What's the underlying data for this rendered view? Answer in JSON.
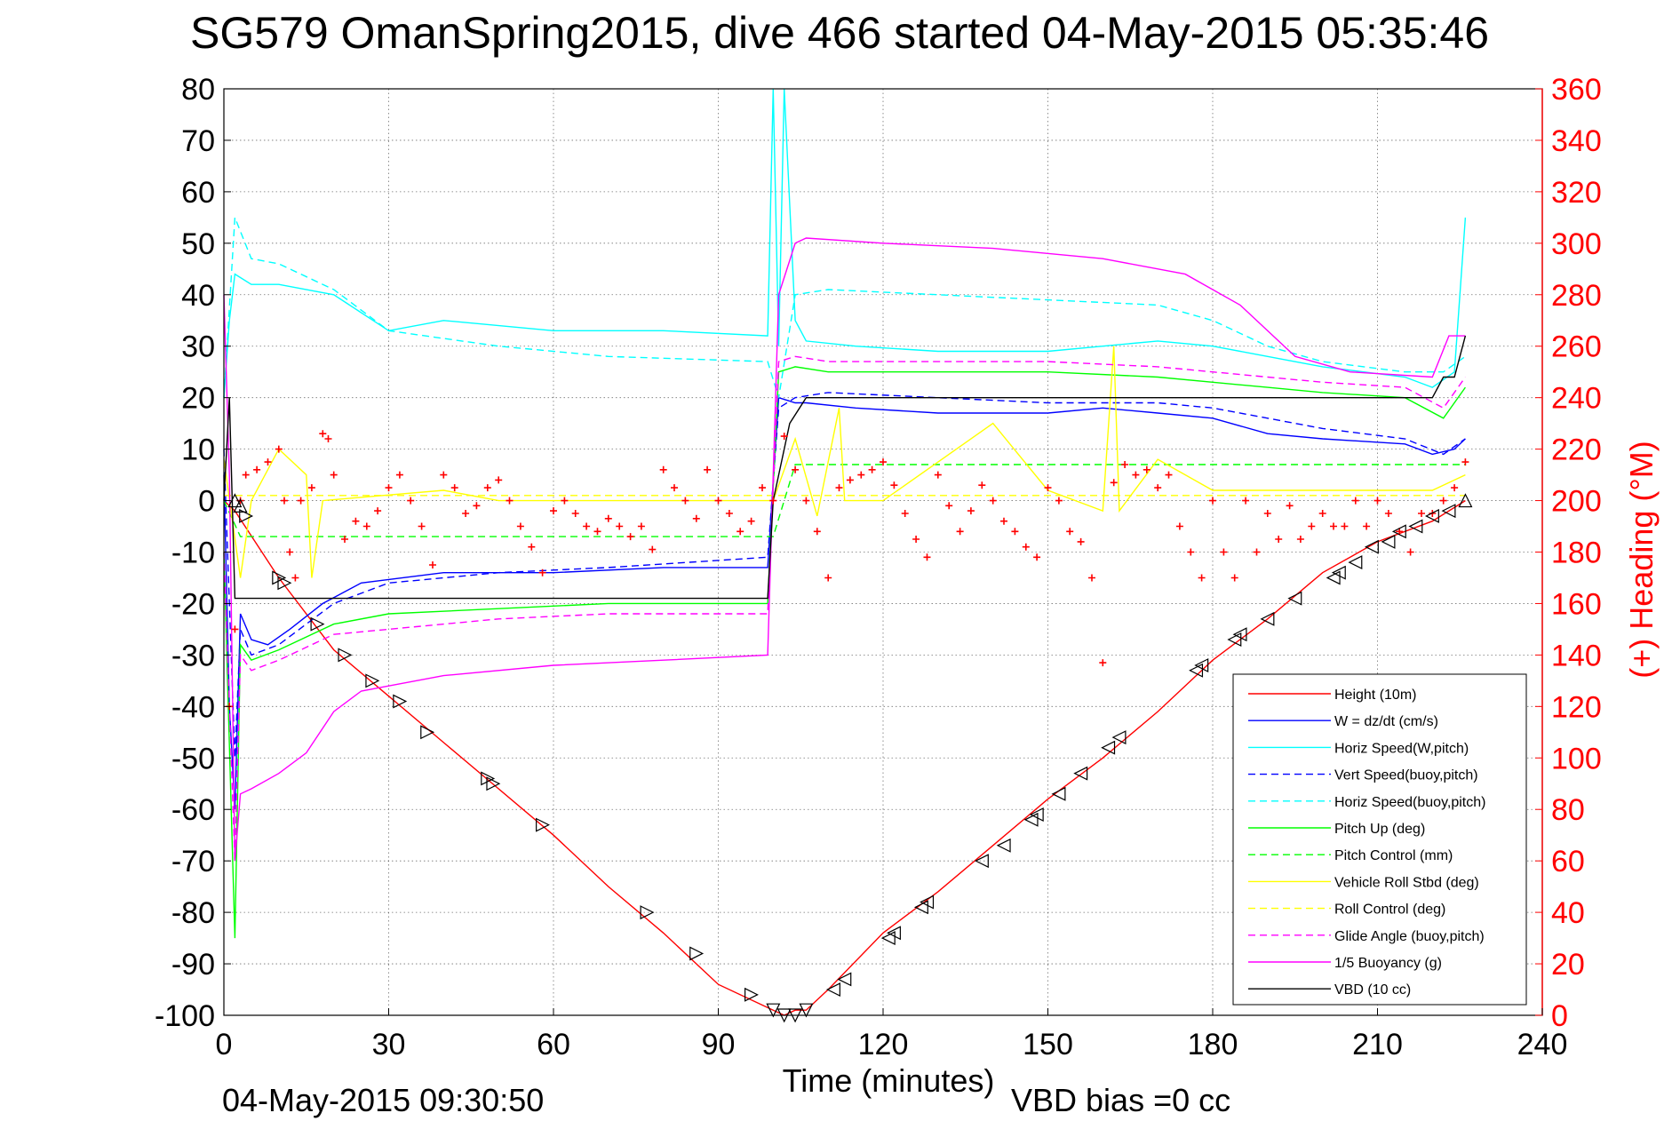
{
  "chart_data": {
    "type": "line",
    "title": "SG579 OmanSpring2015, dive 466 started 04-May-2015 05:35:46",
    "xlabel": "Time (minutes)",
    "ylabel": "",
    "y2label": "(+) Heading (°M)",
    "xlim": [
      0,
      240
    ],
    "ylim": [
      -100,
      80
    ],
    "y2lim": [
      0,
      360
    ],
    "xticks": [
      "0",
      "30",
      "60",
      "90",
      "120",
      "150",
      "180",
      "210",
      "240"
    ],
    "yticks": [
      "80",
      "70",
      "60",
      "50",
      "40",
      "30",
      "20",
      "10",
      "0",
      "-10",
      "-20",
      "-30",
      "-40",
      "-50",
      "-60",
      "-70",
      "-80",
      "-90",
      "-100"
    ],
    "y2ticks": [
      "360",
      "340",
      "320",
      "300",
      "280",
      "260",
      "240",
      "220",
      "200",
      "180",
      "160",
      "140",
      "120",
      "100",
      "80",
      "60",
      "40",
      "20",
      "0"
    ],
    "grid": true,
    "legend_position": "bottom-right",
    "footer_left": "04-May-2015 09:30:50",
    "footer_right": "VBD bias =0 cc",
    "colors": {
      "red": "#ff0000",
      "blue": "#0000ff",
      "cyan": "#00ffff",
      "green": "#00ff00",
      "yellow": "#ffff00",
      "magenta": "#ff00ff",
      "black": "#000000"
    },
    "series": [
      {
        "name": "Height (10m)",
        "color": "#ff0000",
        "dash": false,
        "x": [
          0,
          2,
          10,
          20,
          30,
          40,
          50,
          60,
          70,
          80,
          90,
          100,
          102,
          104,
          106,
          110,
          120,
          130,
          140,
          150,
          160,
          170,
          180,
          190,
          200,
          210,
          220,
          226
        ],
        "y": [
          0,
          -2,
          -15,
          -29,
          -38,
          -47,
          -56,
          -65,
          -75,
          -84,
          -94,
          -99,
          -100,
          -99,
          -99,
          -95,
          -84,
          -76,
          -67,
          -58,
          -50,
          -41,
          -31,
          -23,
          -14,
          -8,
          -4,
          0
        ]
      },
      {
        "name": "W = dz/dt (cm/s)",
        "color": "#0000ff",
        "dash": false,
        "x": [
          0,
          1,
          2,
          3,
          5,
          8,
          12,
          18,
          25,
          40,
          60,
          80,
          99,
          101,
          104,
          106,
          115,
          130,
          150,
          160,
          170,
          180,
          190,
          200,
          215,
          220,
          224,
          226
        ],
        "y": [
          5,
          -40,
          -60,
          -22,
          -27,
          -28,
          -25,
          -20,
          -16,
          -14,
          -14,
          -13,
          -13,
          20,
          19,
          19,
          18,
          17,
          17,
          18,
          17,
          16,
          13,
          12,
          11,
          9,
          10,
          12
        ]
      },
      {
        "name": "Horiz Speed(W,pitch)",
        "color": "#00ffff",
        "dash": false,
        "x": [
          0,
          1,
          2,
          5,
          10,
          20,
          30,
          40,
          60,
          80,
          99,
          100,
          101,
          102,
          104,
          106,
          115,
          130,
          150,
          160,
          170,
          180,
          190,
          200,
          215,
          220,
          224,
          226
        ],
        "y": [
          20,
          35,
          44,
          42,
          42,
          40,
          33,
          35,
          33,
          33,
          32,
          80,
          30,
          80,
          35,
          31,
          30,
          29,
          29,
          30,
          31,
          30,
          28,
          26,
          24,
          22,
          25,
          55
        ]
      },
      {
        "name": "Vert Speed(buoy,pitch)",
        "color": "#0000ff",
        "dash": true,
        "x": [
          0,
          2,
          3,
          5,
          10,
          20,
          30,
          50,
          70,
          99,
          101,
          104,
          110,
          130,
          150,
          170,
          180,
          190,
          200,
          215,
          222,
          226
        ],
        "y": [
          10,
          -50,
          -25,
          -30,
          -28,
          -20,
          -16,
          -14,
          -13,
          -11,
          18,
          20,
          21,
          20,
          19,
          19,
          18,
          16,
          14,
          12,
          9,
          12
        ]
      },
      {
        "name": "Horiz Speed(buoy,pitch)",
        "color": "#00ffff",
        "dash": true,
        "x": [
          0,
          2,
          5,
          10,
          20,
          30,
          50,
          70,
          99,
          101,
          104,
          110,
          130,
          150,
          170,
          180,
          190,
          200,
          215,
          222,
          226
        ],
        "y": [
          20,
          55,
          47,
          46,
          41,
          33,
          30,
          28,
          27,
          20,
          40,
          41,
          40,
          39,
          38,
          35,
          30,
          27,
          25,
          25,
          28
        ]
      },
      {
        "name": "Pitch Up (deg)",
        "color": "#00ff00",
        "dash": false,
        "x": [
          0,
          2,
          3,
          5,
          10,
          20,
          30,
          50,
          70,
          99,
          101,
          104,
          110,
          130,
          150,
          170,
          180,
          190,
          200,
          215,
          222,
          226
        ],
        "y": [
          -10,
          -85,
          -28,
          -31,
          -29,
          -24,
          -22,
          -21,
          -20,
          -20,
          25,
          26,
          25,
          25,
          25,
          24,
          23,
          22,
          21,
          20,
          16,
          22
        ]
      },
      {
        "name": "Pitch Control (mm)",
        "color": "#00ff00",
        "dash": true,
        "x": [
          0,
          3,
          5,
          100,
          104,
          226
        ],
        "y": [
          0,
          -7,
          -7,
          -7,
          7,
          7
        ]
      },
      {
        "name": "Vehicle Roll Stbd (deg)",
        "color": "#ffff00",
        "dash": false,
        "x": [
          0,
          3,
          5,
          10,
          15,
          16,
          18,
          40,
          50,
          70,
          90,
          100,
          104,
          108,
          112,
          113,
          120,
          140,
          150,
          160,
          162,
          163,
          170,
          180,
          195,
          210,
          220,
          226
        ],
        "y": [
          8,
          -15,
          0,
          10,
          5,
          -15,
          0,
          2,
          0,
          0,
          0,
          0,
          12,
          -3,
          18,
          0,
          0,
          15,
          2,
          -2,
          30,
          -2,
          8,
          2,
          2,
          2,
          2,
          5
        ]
      },
      {
        "name": "Roll Control (deg)",
        "color": "#ffff00",
        "dash": true,
        "x": [
          0,
          226
        ],
        "y": [
          1,
          1
        ]
      },
      {
        "name": "Glide Angle (buoy,pitch)",
        "color": "#ff00ff",
        "dash": true,
        "x": [
          0,
          2,
          3,
          5,
          10,
          20,
          30,
          50,
          70,
          99,
          101,
          104,
          110,
          130,
          150,
          170,
          180,
          190,
          200,
          215,
          222,
          226
        ],
        "y": [
          -10,
          -70,
          -30,
          -33,
          -31,
          -26,
          -25,
          -23,
          -22,
          -22,
          27,
          28,
          27,
          27,
          27,
          26,
          25,
          24,
          23,
          22,
          18,
          24
        ]
      },
      {
        "name": "1/5 Buoyancy (g)",
        "color": "#ff00ff",
        "dash": false,
        "x": [
          0,
          1,
          2,
          3,
          5,
          10,
          15,
          20,
          25,
          30,
          40,
          60,
          80,
          99,
          101,
          104,
          106,
          120,
          140,
          160,
          175,
          185,
          195,
          205,
          220,
          223,
          226
        ],
        "y": [
          40,
          5,
          -70,
          -57,
          -56,
          -53,
          -49,
          -41,
          -37,
          -36,
          -34,
          -32,
          -31,
          -30,
          40,
          50,
          51,
          50,
          49,
          47,
          44,
          38,
          28,
          25,
          24,
          32,
          32
        ]
      },
      {
        "name": "VBD (10 cc)",
        "color": "#000000",
        "dash": false,
        "x": [
          0,
          1,
          2,
          5,
          99,
          100,
          103,
          106,
          220,
          222,
          224,
          226
        ],
        "y": [
          0,
          20,
          -19,
          -19,
          -19,
          0,
          15,
          20,
          20,
          24,
          24,
          32
        ]
      }
    ],
    "heading": {
      "name": "(+) Heading",
      "color": "#ff0000",
      "x": [
        1,
        2,
        3,
        4,
        6,
        8,
        10,
        11,
        12,
        13,
        14,
        16,
        18,
        19,
        20,
        22,
        24,
        26,
        28,
        30,
        32,
        34,
        36,
        38,
        40,
        42,
        44,
        46,
        48,
        50,
        52,
        54,
        56,
        58,
        60,
        62,
        64,
        66,
        68,
        70,
        72,
        74,
        76,
        78,
        80,
        82,
        84,
        86,
        88,
        90,
        92,
        94,
        96,
        98,
        100,
        102,
        104,
        106,
        108,
        110,
        112,
        114,
        116,
        118,
        120,
        122,
        124,
        126,
        128,
        130,
        132,
        134,
        136,
        138,
        140,
        142,
        144,
        146,
        148,
        150,
        152,
        154,
        156,
        158,
        160,
        162,
        164,
        166,
        168,
        170,
        172,
        174,
        176,
        178,
        180,
        182,
        184,
        186,
        188,
        190,
        192,
        194,
        196,
        198,
        200,
        202,
        204,
        206,
        208,
        210,
        212,
        214,
        216,
        218,
        220,
        222,
        224,
        226
      ],
      "y": [
        120,
        150,
        200,
        210,
        212,
        215,
        220,
        200,
        180,
        170,
        200,
        205,
        226,
        224,
        210,
        185,
        192,
        190,
        196,
        205,
        210,
        200,
        190,
        175,
        210,
        205,
        195,
        198,
        205,
        208,
        200,
        190,
        182,
        172,
        196,
        200,
        195,
        190,
        188,
        193,
        190,
        186,
        190,
        181,
        212,
        205,
        200,
        193,
        212,
        200,
        195,
        188,
        192,
        205,
        200,
        225,
        212,
        200,
        188,
        170,
        205,
        208,
        210,
        212,
        215,
        206,
        195,
        185,
        178,
        210,
        198,
        188,
        196,
        206,
        200,
        192,
        188,
        182,
        178,
        205,
        200,
        188,
        184,
        170,
        137,
        207,
        214,
        210,
        212,
        205,
        210,
        190,
        180,
        170,
        200,
        180,
        170,
        200,
        180,
        195,
        185,
        198,
        185,
        190,
        195,
        190,
        190,
        200,
        190,
        200,
        195,
        188,
        180,
        195,
        195,
        200,
        205,
        215
      ]
    },
    "markers": {
      "name": "dive markers",
      "x": [
        2,
        3,
        4,
        10,
        11,
        17,
        22,
        27,
        32,
        37,
        48,
        49,
        58,
        77,
        86,
        96,
        100,
        102,
        104,
        106,
        111,
        113,
        121,
        122,
        127,
        128,
        138,
        142,
        147,
        148,
        152,
        156,
        161,
        163,
        177,
        178,
        184,
        185,
        190,
        195,
        202,
        203,
        206,
        209,
        212,
        214,
        217,
        220,
        223,
        226
      ],
      "y": [
        0,
        -1,
        -3,
        -15,
        -16,
        -24,
        -30,
        -35,
        -39,
        -45,
        -54,
        -55,
        -63,
        -80,
        -88,
        -96,
        -99,
        -100,
        -100,
        -99,
        -95,
        -93,
        -85,
        -84,
        -79,
        -78,
        -70,
        -67,
        -62,
        -61,
        -57,
        -53,
        -48,
        -46,
        -33,
        -32,
        -27,
        -26,
        -23,
        -19,
        -15,
        -14,
        -12,
        -9,
        -8,
        -6,
        -5,
        -3,
        -2,
        0
      ],
      "dir": [
        "up",
        "up",
        "right",
        "right",
        "right",
        "right",
        "right",
        "right",
        "right",
        "right",
        "right",
        "right",
        "right",
        "right",
        "right",
        "right",
        "down",
        "down",
        "down",
        "down",
        "left",
        "left",
        "left",
        "left",
        "left",
        "left",
        "left",
        "left",
        "left",
        "left",
        "left",
        "left",
        "left",
        "left",
        "left",
        "left",
        "left",
        "left",
        "left",
        "left",
        "left",
        "left",
        "left",
        "left",
        "left",
        "left",
        "left",
        "left",
        "left",
        "up"
      ]
    }
  }
}
